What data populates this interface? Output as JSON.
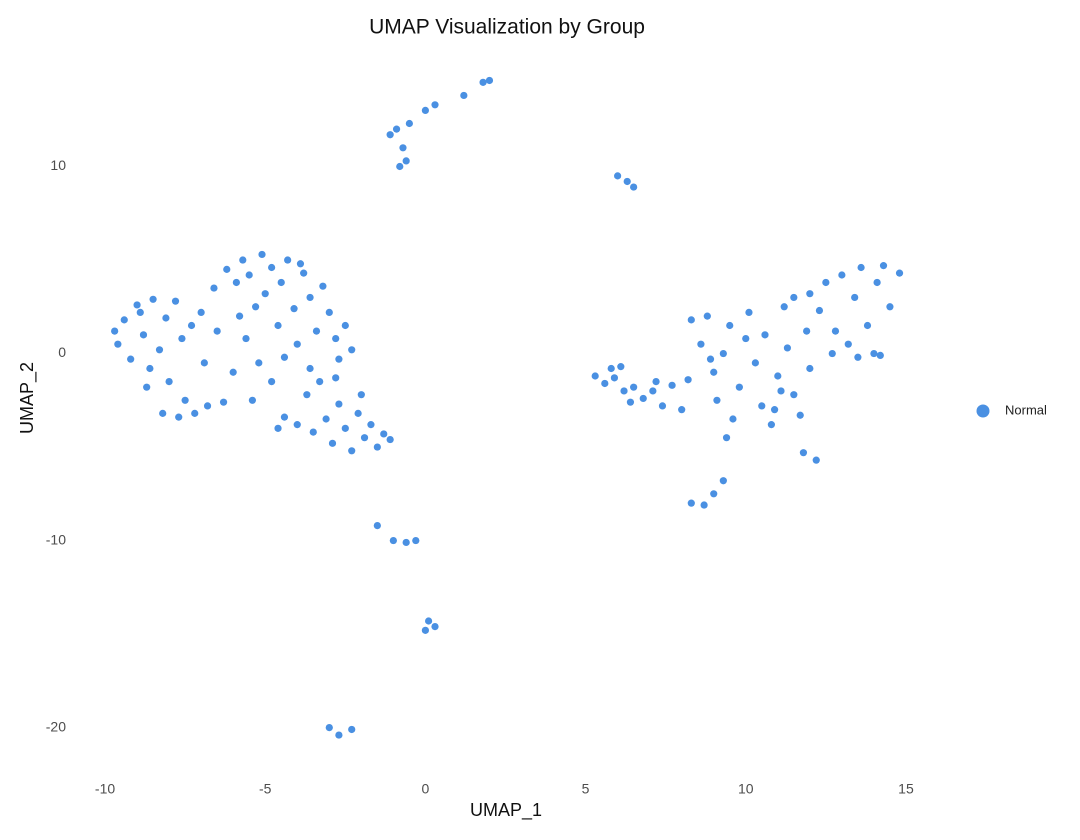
{
  "chart_data": {
    "type": "scatter",
    "title": "UMAP Visualization by Group",
    "x_label": "UMAP_1",
    "y_label": "UMAP_2",
    "xlim": [
      -11,
      16.5
    ],
    "ylim": [
      -22,
      15
    ],
    "xticks": [
      -10,
      -5,
      0,
      5,
      10,
      15
    ],
    "yticks": [
      -20,
      -10,
      0,
      10
    ],
    "grid": false,
    "legend_position": "right",
    "series": [
      {
        "name": "Normal",
        "color": "#4a90e2",
        "x": [
          -9.6,
          -9.4,
          -9.2,
          -9,
          -8.8,
          -8.6,
          -8.5,
          -8.3,
          -8.1,
          -8,
          -7.8,
          -7.6,
          -7.5,
          -7.3,
          -7.2,
          -7,
          -6.9,
          -6.8,
          -6.6,
          -6.5,
          -8.2,
          -7.7,
          -6.3,
          -9.7,
          -8.9,
          -8.7,
          -6.2,
          -5.9,
          -5.7,
          -5.5,
          -5.3,
          -5.1,
          -5,
          -4.8,
          -4.6,
          -4.5,
          -4.3,
          -4.1,
          -4,
          -3.8,
          -3.6,
          -3.4,
          -3.2,
          -3,
          -2.8,
          -2.5,
          -2.3,
          -5.6,
          -5.2,
          -4.8,
          -5.8,
          -3.9,
          -2.7,
          -5.4,
          -6,
          -4.4,
          -4.4,
          -4,
          -3.7,
          -3.5,
          -3.3,
          -3.1,
          -2.9,
          -2.7,
          -2.5,
          -2.3,
          -2.1,
          -1.9,
          -1.7,
          -1.5,
          -1.3,
          -1.1,
          -2.8,
          -3.6,
          -2,
          -4.6,
          5.3,
          5.6,
          5.9,
          6.2,
          6.5,
          6.8,
          7.1,
          7.4,
          7.7,
          8,
          5.8,
          6.1,
          7.2,
          8.2,
          6.4,
          8.3,
          8.6,
          8.8,
          9,
          9.1,
          9.3,
          9.5,
          9.6,
          9.8,
          10,
          10.1,
          10.3,
          10.5,
          10.6,
          10.8,
          11,
          11.2,
          11.3,
          11.5,
          11.7,
          11.9,
          12,
          9.4,
          10.9,
          8.9,
          11.1,
          11.5,
          12,
          12.3,
          12.5,
          12.8,
          13,
          13.2,
          13.4,
          13.6,
          13.8,
          14,
          14.1,
          14.3,
          14.5,
          14.8,
          13.5,
          12.7,
          14.2,
          -0.9,
          -1.1,
          -0.7,
          -0.6,
          -0.8,
          -0.5,
          0,
          0.3,
          1.2,
          1.8,
          2,
          6,
          6.3,
          6.5,
          11.8,
          12.2,
          8.3,
          8.7,
          9,
          9.3,
          -1.5,
          -1,
          -0.6,
          -0.3,
          0,
          0.3,
          0.1,
          -3,
          -2.7,
          -2.3
        ],
        "y": [
          0.5,
          1.8,
          -0.3,
          2.6,
          1,
          -0.8,
          2.9,
          0.2,
          1.9,
          -1.5,
          2.8,
          0.8,
          -2.5,
          1.5,
          -3.2,
          2.2,
          -0.5,
          -2.8,
          3.5,
          1.2,
          -3.2,
          -3.4,
          -2.6,
          1.2,
          2.2,
          -1.8,
          4.5,
          3.8,
          5,
          4.2,
          2.5,
          5.3,
          3.2,
          4.6,
          1.5,
          3.8,
          5,
          2.4,
          0.5,
          4.3,
          3,
          1.2,
          3.6,
          2.2,
          0.8,
          1.5,
          0.2,
          0.8,
          -0.5,
          -1.5,
          2,
          4.8,
          -0.3,
          -2.5,
          -1,
          -0.2,
          -3.4,
          -3.8,
          -2.2,
          -4.2,
          -1.5,
          -3.5,
          -4.8,
          -2.7,
          -4,
          -5.2,
          -3.2,
          -4.5,
          -3.8,
          -5,
          -4.3,
          -4.6,
          -1.3,
          -0.8,
          -2.2,
          -4,
          -1.2,
          -1.6,
          -1.3,
          -2,
          -1.8,
          -2.4,
          -2,
          -2.8,
          -1.7,
          -3,
          -0.8,
          -0.7,
          -1.5,
          -1.4,
          -2.6,
          1.8,
          0.5,
          2,
          -1,
          -2.5,
          0,
          1.5,
          -3.5,
          -1.8,
          0.8,
          2.2,
          -0.5,
          -2.8,
          1,
          -3.8,
          -1.2,
          2.5,
          0.3,
          -2.2,
          -3.3,
          1.2,
          -0.8,
          -4.5,
          -3,
          -0.3,
          -2,
          3,
          3.2,
          2.3,
          3.8,
          1.2,
          4.2,
          0.5,
          3,
          4.6,
          1.5,
          0,
          3.8,
          4.7,
          2.5,
          4.3,
          -0.2,
          0,
          -0.1,
          12,
          11.7,
          11,
          10.3,
          10,
          12.3,
          13,
          13.3,
          13.8,
          14.5,
          14.6,
          9.5,
          9.2,
          8.9,
          -5.3,
          -5.7,
          -8,
          -8.1,
          -7.5,
          -6.8,
          -9.2,
          -10,
          -10.1,
          -10,
          -14.8,
          -14.6,
          -14.3,
          -20,
          -20.4,
          -20.1
        ]
      }
    ]
  }
}
